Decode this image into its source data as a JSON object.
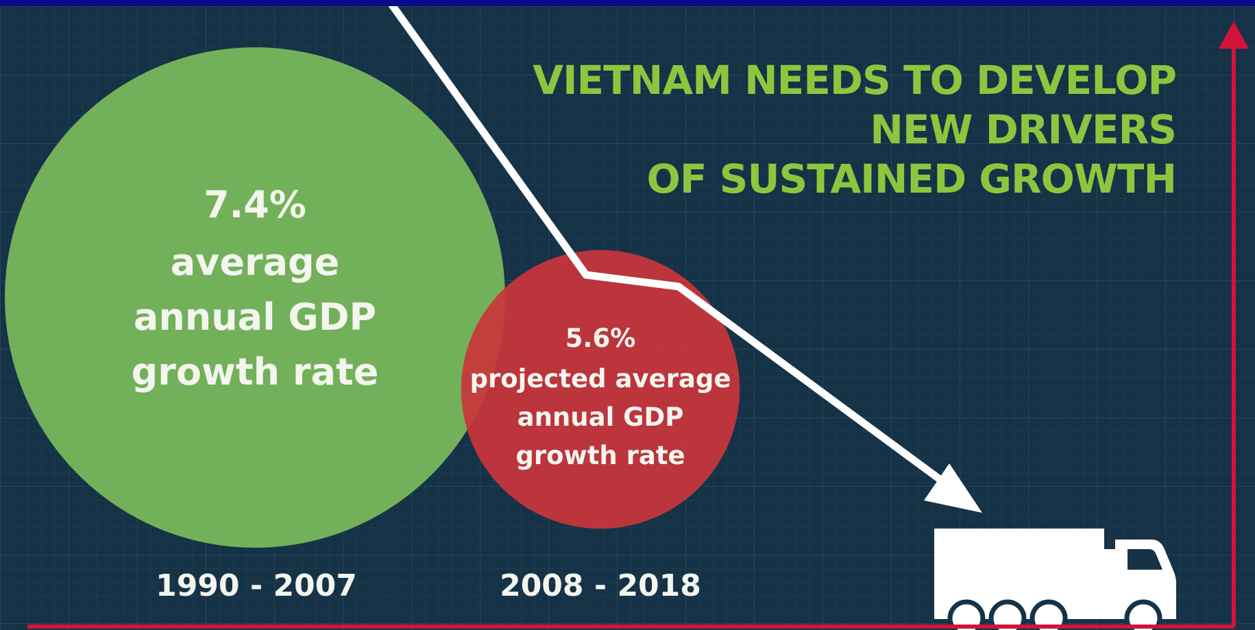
{
  "headline": {
    "line1": "VIETNAM NEEDS TO DEVELOP",
    "line2": "NEW DRIVERS",
    "line3": "OF SUSTAINED GROWTH"
  },
  "circles": [
    {
      "value": "7.4%",
      "line1": "average",
      "line2": "annual GDP",
      "line3": "growth rate",
      "period": "1990 - 2007",
      "color": "#72b05a"
    },
    {
      "value": "5.6%",
      "line1": "projected average",
      "line2": "annual GDP",
      "line3": "growth rate",
      "period": "2008 - 2018",
      "color": "#c9363b"
    }
  ],
  "colors": {
    "background": "#163246",
    "grid": "#24455a",
    "axis": "#d2143a",
    "arrow": "#ffffff",
    "headline": "#8cc63f",
    "frame": "#0a0a8c"
  },
  "icons": [
    "trend-arrow-icon",
    "truck-icon",
    "axis-arrow-icon"
  ],
  "chart_data": {
    "type": "bubble",
    "categories": [
      "1990 - 2007",
      "2008 - 2018"
    ],
    "values": [
      7.4,
      5.6
    ],
    "unit": "%",
    "title": "VIETNAM NEEDS TO DEVELOP NEW DRIVERS OF SUSTAINED GROWTH",
    "xlabel": "",
    "ylabel": "",
    "grid": true,
    "legend": "none"
  }
}
